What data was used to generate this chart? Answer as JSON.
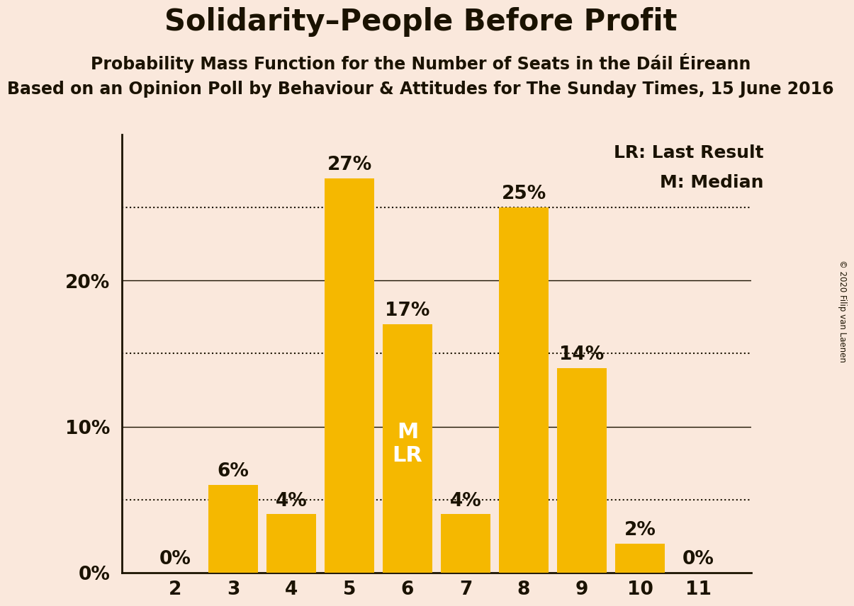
{
  "title": "Solidarity–People Before Profit",
  "subtitle1": "Probability Mass Function for the Number of Seats in the Dáil Éireann",
  "subtitle2": "Based on an Opinion Poll by Behaviour & Attitudes for The Sunday Times, 15 June 2016",
  "copyright": "© 2020 Filip van Laenen",
  "categories": [
    2,
    3,
    4,
    5,
    6,
    7,
    8,
    9,
    10,
    11
  ],
  "values": [
    0,
    6,
    4,
    27,
    17,
    4,
    25,
    14,
    2,
    0
  ],
  "bar_color": "#F5B800",
  "background_color": "#FAE8DC",
  "text_color": "#1a1200",
  "label_color_inside": "#FFFFFF",
  "median_bar": 6,
  "lr_bar": 6,
  "yticks": [
    0,
    10,
    20
  ],
  "dotted_lines": [
    5,
    15,
    25
  ],
  "legend_lr": "LR: Last Result",
  "legend_m": "M: Median",
  "title_fontsize": 30,
  "subtitle1_fontsize": 17,
  "subtitle2_fontsize": 17,
  "bar_label_fontsize": 19,
  "axis_label_fontsize": 19,
  "inside_label_fontsize": 22,
  "legend_fontsize": 18
}
